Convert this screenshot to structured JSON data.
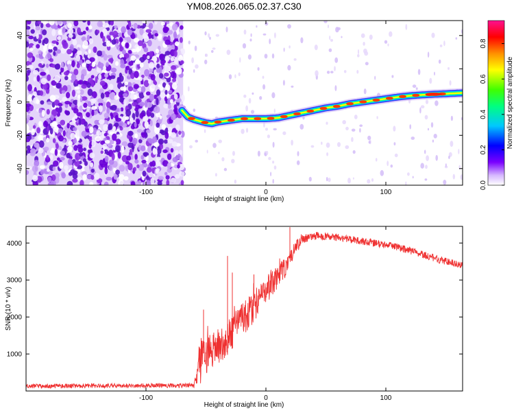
{
  "title": "YM08.2026.065.02.37.C30",
  "chart_data": [
    {
      "type": "heatmap",
      "name": "spectrogram",
      "title": "YM08.2026.065.02.37.C30",
      "xlabel": "Height of straight line (km)",
      "ylabel": "Frequency (Hz)",
      "xlim": [
        -200,
        164
      ],
      "ylim": [
        -50,
        49
      ],
      "xticks": [
        -100,
        0,
        100
      ],
      "xtick_labels": [
        "-100",
        "0",
        "100"
      ],
      "yticks": [
        -40,
        -20,
        0,
        20,
        40
      ],
      "ytick_labels": [
        "-40",
        "-20",
        "0",
        "20",
        "40"
      ],
      "noise_region_x": [
        -200,
        -69
      ],
      "ridge": {
        "x": [
          -70,
          -65,
          -60,
          -55,
          -50,
          -45,
          -40,
          -35,
          -30,
          -25,
          -20,
          -10,
          0,
          10,
          20,
          30,
          40,
          50,
          60,
          70,
          80,
          90,
          100,
          110,
          120,
          130,
          140,
          150,
          164
        ],
        "y": [
          -5,
          -9,
          -10.5,
          -11.5,
          -12.5,
          -13,
          -12,
          -11.5,
          -11,
          -10.5,
          -10,
          -10,
          -10,
          -9.5,
          -8,
          -6.5,
          -5,
          -3.5,
          -2.5,
          -1,
          0,
          1,
          2,
          3,
          3.8,
          4.3,
          4.7,
          5,
          5.5
        ]
      },
      "colorbar": {
        "label": "Normalized spectral amplitude",
        "range": [
          0,
          0.93
        ],
        "ticks": [
          0.0,
          0.2,
          0.4,
          0.6,
          0.8
        ],
        "tick_labels": [
          "0.0",
          "0.2",
          "0.4",
          "0.6",
          "0.8"
        ]
      }
    },
    {
      "type": "line",
      "name": "snr",
      "xlabel": "Height of straight line (km)",
      "ylabel": "SNR (10 * v/v)",
      "xlim": [
        -200,
        164
      ],
      "ylim": [
        0,
        4450
      ],
      "xticks": [
        -100,
        0,
        100
      ],
      "xtick_labels": [
        "-100",
        "0",
        "100"
      ],
      "yticks": [
        1000,
        2000,
        3000,
        4000
      ],
      "ytick_labels": [
        "1000",
        "2000",
        "3000",
        "4000"
      ],
      "color": "#ef3030",
      "series": [
        {
          "name": "SNR",
          "x": [
            -200,
            -150,
            -100,
            -60,
            -57,
            -55,
            -53,
            -50,
            -45,
            -40,
            -35,
            -30,
            -25,
            -20,
            -15,
            -10,
            -5,
            0,
            5,
            10,
            15,
            20,
            25,
            30,
            35,
            40,
            45,
            50,
            60,
            70,
            80,
            90,
            100,
            110,
            120,
            130,
            140,
            150,
            164
          ],
          "values": [
            130,
            140,
            145,
            150,
            450,
            800,
            1000,
            1050,
            1100,
            1200,
            1350,
            1500,
            1700,
            1900,
            2100,
            2300,
            2500,
            2700,
            2900,
            3100,
            3300,
            3600,
            3900,
            4100,
            4150,
            4180,
            4200,
            4180,
            4150,
            4100,
            4050,
            4000,
            3950,
            3880,
            3800,
            3700,
            3600,
            3500,
            3400
          ],
          "noise": [
            60,
            60,
            60,
            60,
            300,
            700,
            700,
            600,
            500,
            500,
            500,
            450,
            450,
            450,
            450,
            450,
            400,
            400,
            350,
            300,
            300,
            250,
            200,
            150,
            120,
            110,
            110,
            100,
            100,
            100,
            100,
            100,
            100,
            100,
            100,
            100,
            100,
            100,
            100
          ],
          "spikes": [
            {
              "x": -52,
              "y": 2200
            },
            {
              "x": -32,
              "y": 3650
            },
            {
              "x": -28,
              "y": 3200
            },
            {
              "x": -10,
              "y": 3150
            },
            {
              "x": 20,
              "y": 4430
            }
          ]
        }
      ]
    }
  ]
}
